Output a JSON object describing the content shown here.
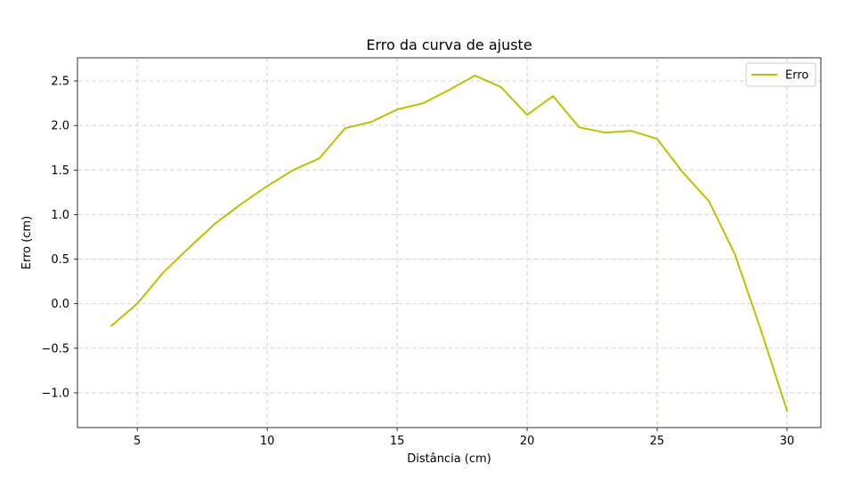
{
  "chart_data": {
    "type": "line",
    "title": "Erro da curva de ajuste",
    "xlabel": "Distância (cm)",
    "ylabel": "Erro (cm)",
    "xlim": [
      2.7,
      31.3
    ],
    "ylim": [
      -1.39,
      2.76
    ],
    "xticks": [
      5,
      10,
      15,
      20,
      25,
      30
    ],
    "xtick_labels": [
      "5",
      "10",
      "15",
      "20",
      "25",
      "30"
    ],
    "yticks": [
      -1.0,
      -0.5,
      0.0,
      0.5,
      1.0,
      1.5,
      2.0,
      2.5
    ],
    "ytick_labels": [
      "−1.0",
      "−0.5",
      "0.0",
      "0.5",
      "1.0",
      "1.5",
      "2.0",
      "2.5"
    ],
    "grid": true,
    "grid_color": "#ccccff",
    "legend_position": "top-right",
    "series": [
      {
        "name": "Erro",
        "color": "#bfbf00",
        "x": [
          4,
          5,
          6,
          7,
          8,
          9,
          10,
          11,
          12,
          13,
          14,
          15,
          16,
          17,
          18,
          19,
          20,
          21,
          22,
          23,
          24,
          25,
          26,
          27,
          28,
          29,
          30
        ],
        "y": [
          -0.25,
          0.0,
          0.35,
          0.63,
          0.9,
          1.12,
          1.32,
          1.5,
          1.63,
          1.97,
          2.04,
          2.18,
          2.25,
          2.4,
          2.56,
          2.43,
          2.12,
          2.33,
          1.98,
          1.92,
          1.94,
          1.85,
          1.47,
          1.15,
          0.55,
          -0.3,
          -1.2
        ]
      }
    ]
  }
}
